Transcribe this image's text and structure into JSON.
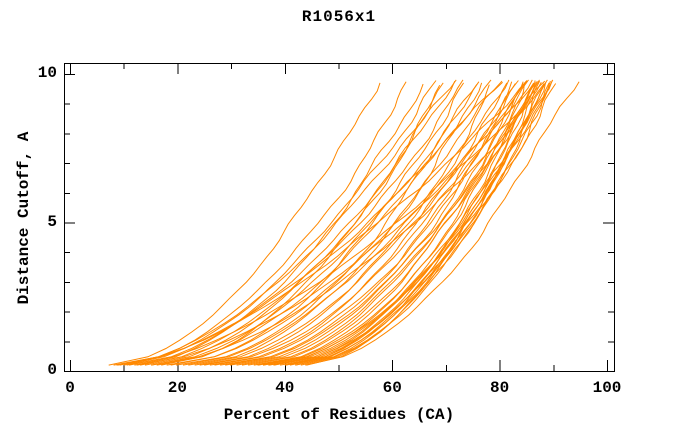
{
  "colors": {
    "background": "#ffffff",
    "axis": "#000000",
    "text": "#000000",
    "curve": "#ff8800"
  },
  "chart_data": {
    "type": "line",
    "title": "R1056x1",
    "xlabel": "Percent of Residues (CA)",
    "ylabel": "Distance Cutoff, A",
    "xlim": [
      -1.1,
      101.5
    ],
    "ylim": [
      0,
      10.37
    ],
    "x_axis": {
      "major_ticks": [
        0,
        20,
        40,
        60,
        80,
        100
      ],
      "major_labels": [
        "0",
        "20",
        "40",
        "60",
        "80",
        "100"
      ],
      "minor_ticks": [
        10,
        30,
        50,
        70,
        90
      ]
    },
    "y_axis": {
      "major_ticks": [
        0,
        5,
        10
      ],
      "major_labels": [
        "0",
        "5",
        "10"
      ],
      "minor_ticks": [
        1,
        2,
        3,
        4,
        6,
        7,
        8,
        9
      ]
    },
    "grid": false,
    "legend": "none",
    "series_color": "#ff8800",
    "n_curves": 50,
    "curve_start_cutoff": 0.2,
    "curve_model": "x(cutoff) = start + (end-start) * ((cutoff-0.2)/(top-0.2))^shape ; each curve = [start_percent, end_percent, shape, top_cutoff]",
    "curves": [
      [
        7.2,
        57,
        0.55,
        9.7
      ],
      [
        8.0,
        63,
        0.53,
        9.74
      ],
      [
        12,
        66,
        0.55,
        9.66
      ],
      [
        10,
        68,
        0.58,
        9.78
      ],
      [
        14,
        70,
        0.54,
        9.7
      ],
      [
        9,
        71,
        0.6,
        9.8
      ],
      [
        16,
        69,
        0.52,
        9.62
      ],
      [
        11,
        72,
        0.58,
        9.76
      ],
      [
        18,
        73,
        0.52,
        9.7
      ],
      [
        13,
        74,
        0.58,
        9.8
      ],
      [
        20,
        75,
        0.51,
        9.66
      ],
      [
        15,
        76,
        0.57,
        9.74
      ],
      [
        22,
        77,
        0.52,
        9.7
      ],
      [
        17,
        78,
        0.59,
        9.8
      ],
      [
        24,
        79,
        0.51,
        9.64
      ],
      [
        19,
        80,
        0.57,
        9.76
      ],
      [
        26,
        81,
        0.51,
        9.7
      ],
      [
        21,
        82,
        0.56,
        9.8
      ],
      [
        28,
        82.5,
        0.5,
        9.68
      ],
      [
        23,
        83,
        0.55,
        9.74
      ],
      [
        30,
        83.5,
        0.5,
        9.78
      ],
      [
        25,
        84,
        0.54,
        9.66
      ],
      [
        32,
        84.5,
        0.5,
        9.74
      ],
      [
        27,
        85,
        0.53,
        9.8
      ],
      [
        34,
        85,
        0.5,
        9.7
      ],
      [
        29,
        85.5,
        0.52,
        9.76
      ],
      [
        36,
        86,
        0.51,
        9.66
      ],
      [
        31,
        86,
        0.52,
        9.8
      ],
      [
        38,
        86.5,
        0.5,
        9.72
      ],
      [
        33,
        86.5,
        0.52,
        9.78
      ],
      [
        40,
        87,
        0.52,
        9.68
      ],
      [
        35,
        87,
        0.51,
        9.76
      ],
      [
        42,
        87.5,
        0.53,
        9.72
      ],
      [
        37,
        87.5,
        0.5,
        9.8
      ],
      [
        44,
        88,
        0.55,
        9.7
      ],
      [
        39,
        88,
        0.5,
        9.76
      ],
      [
        41,
        88.5,
        0.52,
        9.66
      ],
      [
        36,
        88.5,
        0.51,
        9.8
      ],
      [
        43,
        89,
        0.53,
        9.72
      ],
      [
        38,
        89,
        0.5,
        9.78
      ],
      [
        40,
        89.5,
        0.52,
        9.7
      ],
      [
        35,
        90,
        0.51,
        9.76
      ],
      [
        42,
        90,
        0.53,
        9.68
      ],
      [
        37,
        90.5,
        0.5,
        9.8
      ],
      [
        44,
        94,
        0.56,
        9.74
      ],
      [
        8.5,
        85,
        0.64,
        9.78
      ],
      [
        10.5,
        87,
        0.62,
        9.7
      ],
      [
        12.5,
        88,
        0.61,
        9.76
      ],
      [
        15,
        89,
        0.6,
        9.68
      ],
      [
        9.5,
        80,
        0.63,
        9.72
      ]
    ]
  }
}
